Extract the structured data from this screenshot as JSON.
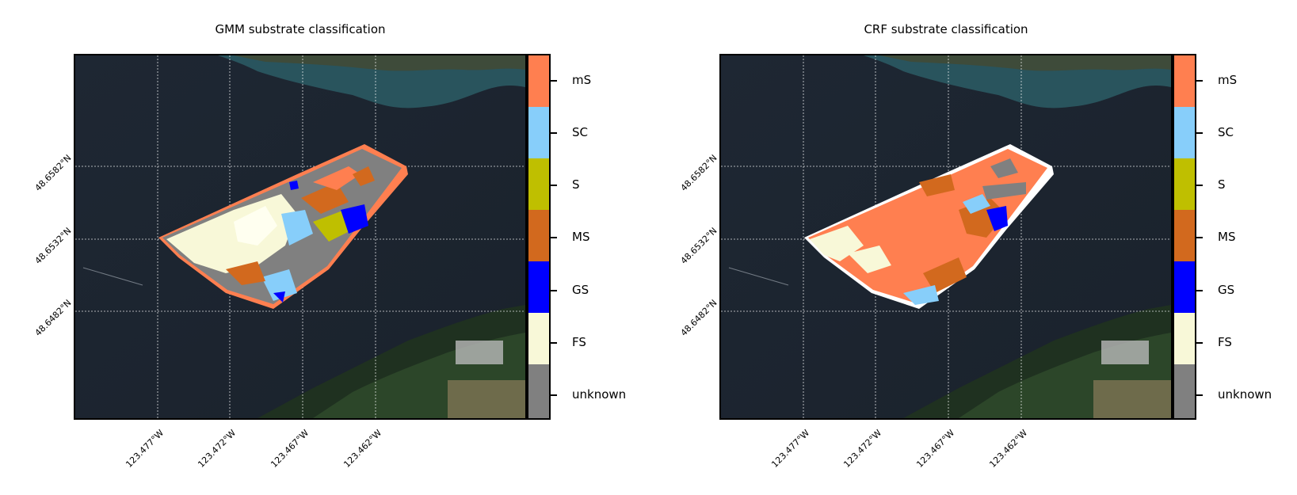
{
  "panels": [
    {
      "title": "GMM substrate classification",
      "dominant": "mixed"
    },
    {
      "title": "CRF substrate classification",
      "dominant": "mS"
    }
  ],
  "lat_labels": [
    "48.6582°N",
    "48.6532°N",
    "48.6482°N"
  ],
  "lon_labels": [
    "123.477°W",
    "123.472°W",
    "123.467°W",
    "123.462°W"
  ],
  "legend": {
    "classes": [
      {
        "label": "mS",
        "color": "#ff7f50"
      },
      {
        "label": "SC",
        "color": "#87cefa"
      },
      {
        "label": "S",
        "color": "#bfbf00"
      },
      {
        "label": "MS",
        "color": "#d2691e"
      },
      {
        "label": "GS",
        "color": "#0000ff"
      },
      {
        "label": "FS",
        "color": "#f8f8d8"
      },
      {
        "label": "unknown",
        "color": "#808080"
      }
    ]
  }
}
